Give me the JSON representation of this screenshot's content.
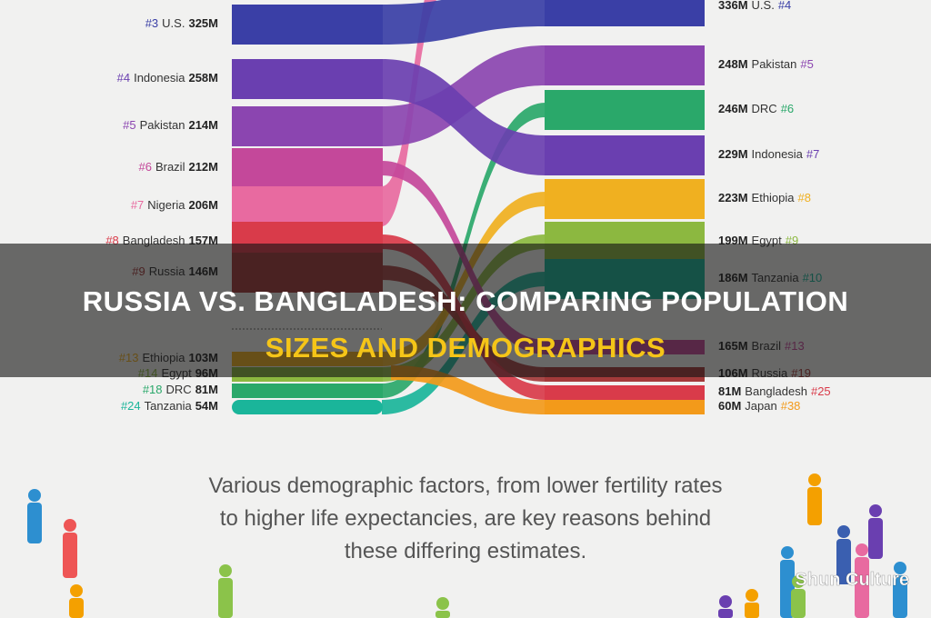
{
  "left_items": [
    {
      "rank": "#3",
      "name": "U.S.",
      "value": "325M",
      "color": "#3a3fa6"
    },
    {
      "rank": "#4",
      "name": "Indonesia",
      "value": "258M",
      "color": "#6a3fb0"
    },
    {
      "rank": "#5",
      "name": "Pakistan",
      "value": "214M",
      "color": "#8b45b0"
    },
    {
      "rank": "#6",
      "name": "Brazil",
      "value": "212M",
      "color": "#c4489a"
    },
    {
      "rank": "#7",
      "name": "Nigeria",
      "value": "206M",
      "color": "#e86aa0"
    },
    {
      "rank": "#8",
      "name": "Bangladesh",
      "value": "157M",
      "color": "#d93b4a"
    },
    {
      "rank": "#9",
      "name": "Russia",
      "value": "146M",
      "color": "#a33a3a"
    },
    {
      "rank": "#13",
      "name": "Ethiopia",
      "value": "103M",
      "color": "#f0b020"
    },
    {
      "rank": "#14",
      "name": "Egypt",
      "value": "96M",
      "color": "#8cb840"
    },
    {
      "rank": "#18",
      "name": "DRC",
      "value": "81M",
      "color": "#2aa86a"
    },
    {
      "rank": "#24",
      "name": "Tanzania",
      "value": "54M",
      "color": "#1ab59a"
    }
  ],
  "right_items": [
    {
      "value": "336M",
      "name": "U.S.",
      "rank": "#4",
      "color": "#3a3fa6"
    },
    {
      "value": "248M",
      "name": "Pakistan",
      "rank": "#5",
      "color": "#8b45b0"
    },
    {
      "value": "246M",
      "name": "DRC",
      "rank": "#6",
      "color": "#2aa86a"
    },
    {
      "value": "229M",
      "name": "Indonesia",
      "rank": "#7",
      "color": "#6a3fb0"
    },
    {
      "value": "223M",
      "name": "Ethiopia",
      "rank": "#8",
      "color": "#f0b020"
    },
    {
      "value": "199M",
      "name": "Egypt",
      "rank": "#9",
      "color": "#8cb840"
    },
    {
      "value": "186M",
      "name": "Tanzania",
      "rank": "#10",
      "color": "#1ab59a"
    },
    {
      "value": "165M",
      "name": "Brazil",
      "rank": "#13",
      "color": "#c4489a"
    },
    {
      "value": "106M",
      "name": "Russia",
      "rank": "#19",
      "color": "#a33a3a"
    },
    {
      "value": "81M",
      "name": "Bangladesh",
      "rank": "#25",
      "color": "#d93b4a"
    },
    {
      "value": "60M",
      "name": "Japan",
      "rank": "#38",
      "color": "#f39a1a"
    }
  ],
  "title": {
    "line1": "RUSSIA VS. BANGLADESH: COMPARING POPULATION",
    "line2": "SIZES AND DEMOGRAPHICS"
  },
  "caption": [
    "Various demographic factors, from lower fertility rates",
    "to higher life expectancies, are key reasons behind",
    "these differing estimates."
  ],
  "watermark": "Shun Culture"
}
